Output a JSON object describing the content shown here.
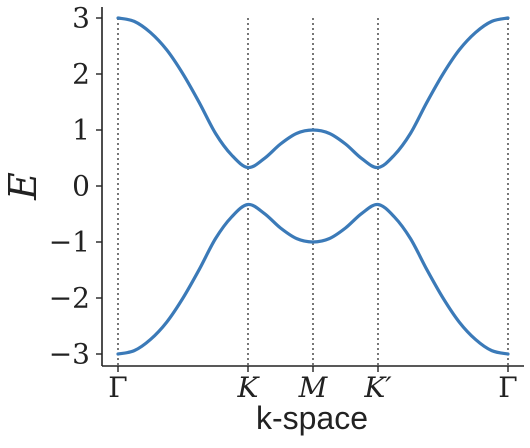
{
  "chart_data": {
    "type": "line",
    "xlabel": "k-space",
    "ylabel": "E",
    "ylim": [
      -3.2,
      3.2
    ],
    "grid": false,
    "legend": "none",
    "x_ticks": [
      "Γ",
      "K",
      "M",
      "K′",
      "Γ"
    ],
    "y_ticks": [
      "3",
      "2",
      "1",
      "0",
      "−1",
      "−2",
      "−3"
    ],
    "x": [
      0,
      0.5,
      1.0,
      1.5,
      2.0,
      2.5,
      3.0,
      3.5,
      4.0,
      4.5,
      5.0,
      5.5,
      6.0,
      6.5,
      7.0,
      7.5,
      8.0,
      8.5,
      9.0,
      9.5,
      10.0,
      10.5,
      11.0,
      11.5,
      12.0
    ],
    "series": [
      {
        "values": [
          3.0,
          2.94,
          2.74,
          2.43,
          2.0,
          1.49,
          0.94,
          0.55,
          0.33,
          0.49,
          0.75,
          0.94,
          1.0,
          0.94,
          0.75,
          0.49,
          0.33,
          0.55,
          0.94,
          1.49,
          2.0,
          2.43,
          2.74,
          2.94,
          3.0
        ],
        "color": "#3b7ab8"
      },
      {
        "values": [
          -3.0,
          -2.94,
          -2.74,
          -2.43,
          -2.0,
          -1.49,
          -0.94,
          -0.55,
          -0.33,
          -0.49,
          -0.75,
          -0.94,
          -1.0,
          -0.94,
          -0.75,
          -0.49,
          -0.33,
          -0.55,
          -0.94,
          -1.49,
          -2.0,
          -2.43,
          -2.74,
          -2.94,
          -3.0
        ],
        "color": "#3b7ab8"
      }
    ]
  }
}
